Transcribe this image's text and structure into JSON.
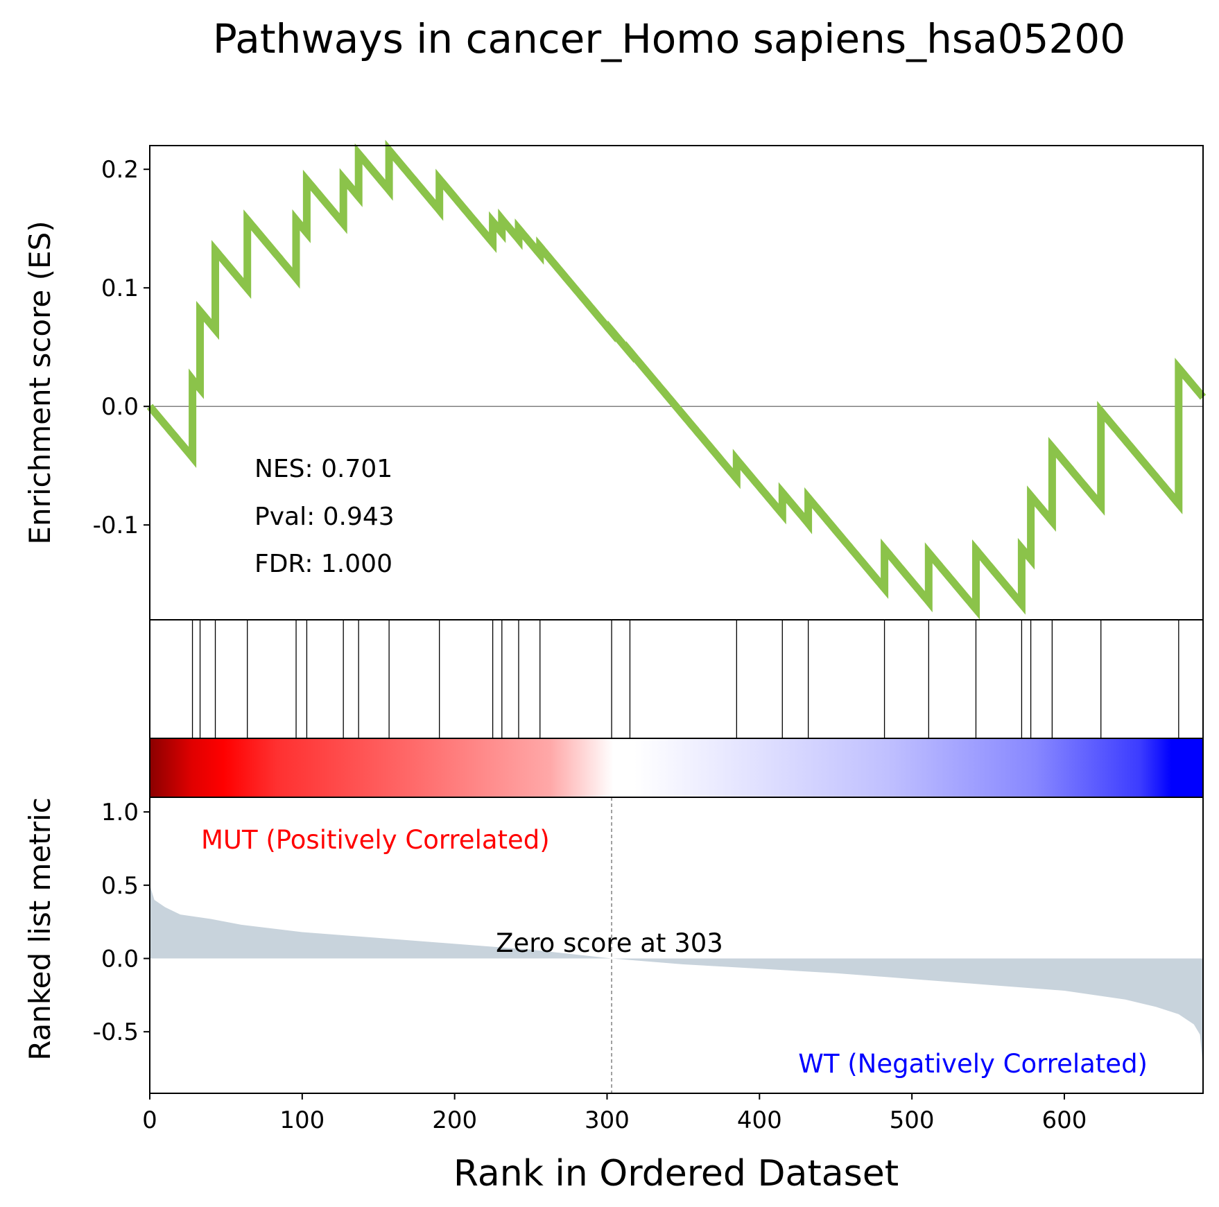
{
  "chart_data": {
    "type": "line",
    "title": "Pathways in cancer_Homo sapiens_hsa05200",
    "xlabel": "Rank in Ordered Dataset",
    "xlim": [
      0,
      691
    ],
    "x_ticks": [
      0,
      100,
      200,
      300,
      400,
      500,
      600
    ],
    "es_panel": {
      "ylabel": "Enrichment score (ES)",
      "ylim": [
        -0.18,
        0.22
      ],
      "y_ticks": [
        0.2,
        0.1,
        0.0,
        -0.1
      ],
      "y_tick_labels": [
        "0.2",
        "0.1",
        "0.0",
        "-0.1"
      ],
      "line_color": "#8bc34a",
      "zero_line_color": "#808080",
      "stats": [
        "NES: 0.701",
        "Pval: 0.943",
        "FDR: 1.000"
      ],
      "series": [
        {
          "x": [
            0,
            28,
            28
          ],
          "y": [
            0.0,
            -0.043,
            0.0
          ]
        },
        {
          "x": [
            28,
            29,
            29
          ],
          "y": [
            0.0,
            0.022,
            0.022
          ]
        }
      ]
    },
    "hits": [
      28,
      33,
      43,
      64,
      96,
      103,
      127,
      137,
      157,
      190,
      225,
      231,
      242,
      256,
      303,
      315,
      385,
      415,
      432,
      482,
      511,
      542,
      572,
      578,
      592,
      624,
      675
    ],
    "hit_deltas": [
      0.0655,
      0.0653,
      0.0667,
      0.0579,
      0.0489,
      0.0444,
      0.0381,
      0.0362,
      0.0336,
      0.0262,
      0.0177,
      0.0112,
      0.0088,
      0.0063,
      0.0012,
      0.0009,
      0.0161,
      0.0181,
      0.0217,
      0.0334,
      0.0412,
      0.05,
      0.0472,
      0.0534,
      0.0625,
      0.0793,
      0.1146
    ],
    "miss_step": -0.001532,
    "metric_panel": {
      "ylabel": "Ranked list metric",
      "ylim": [
        -0.92,
        1.1
      ],
      "y_ticks": [
        1.0,
        0.5,
        0.0,
        -0.5
      ],
      "y_tick_labels": [
        "1.0",
        "0.5",
        "0.0",
        "-0.5"
      ],
      "fill_color": "#c8d3dc",
      "metric_profile": [
        [
          0,
          0.5
        ],
        [
          3,
          0.4
        ],
        [
          10,
          0.35
        ],
        [
          20,
          0.3
        ],
        [
          40,
          0.27
        ],
        [
          60,
          0.23
        ],
        [
          100,
          0.18
        ],
        [
          150,
          0.14
        ],
        [
          200,
          0.1
        ],
        [
          250,
          0.06
        ],
        [
          303,
          0.0
        ],
        [
          350,
          -0.04
        ],
        [
          400,
          -0.07
        ],
        [
          450,
          -0.1
        ],
        [
          500,
          -0.14
        ],
        [
          550,
          -0.18
        ],
        [
          600,
          -0.22
        ],
        [
          640,
          -0.28
        ],
        [
          660,
          -0.33
        ],
        [
          675,
          -0.38
        ],
        [
          685,
          -0.45
        ],
        [
          689,
          -0.52
        ],
        [
          691,
          -0.75
        ]
      ],
      "zero_cross": 303,
      "zero_label": "Zero score at 303",
      "pos_label": "MUT (Positively Correlated)",
      "neg_label": "WT (Negatively Correlated)",
      "pos_color": "#ff0000",
      "neg_color": "#0000ff"
    },
    "colorbar": {
      "low": "#0000ff",
      "mid": "#ffffff",
      "high": "#ff0000",
      "dark": "#8b0000"
    },
    "legend": "none",
    "grid": false
  }
}
